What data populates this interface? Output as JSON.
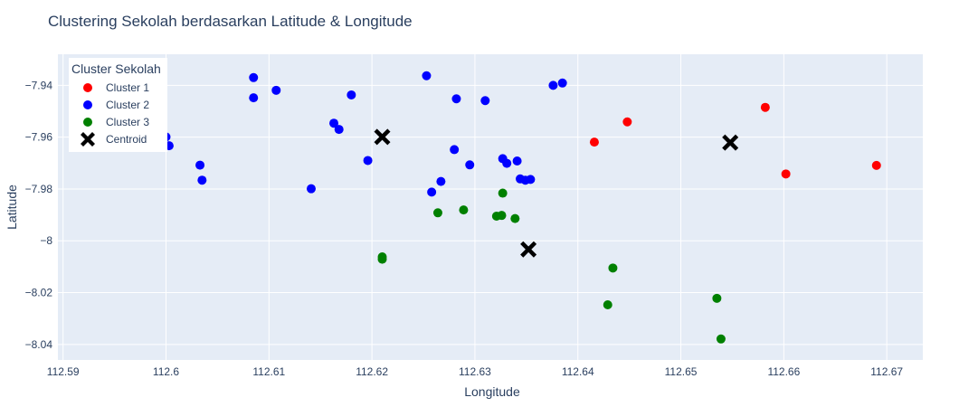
{
  "chart_data": {
    "type": "scatter",
    "title": "Clustering Sekolah berdasarkan Latitude & Longitude",
    "xlabel": "Longitude",
    "ylabel": "Latitude",
    "xlim": [
      112.5895,
      112.6735
    ],
    "ylim": [
      -8.046,
      -7.928
    ],
    "x_ticks": [
      112.59,
      112.6,
      112.61,
      112.62,
      112.63,
      112.64,
      112.65,
      112.66,
      112.67
    ],
    "x_tick_labels": [
      "112.59",
      "112.6",
      "112.61",
      "112.62",
      "112.63",
      "112.64",
      "112.65",
      "112.66",
      "112.67"
    ],
    "y_ticks": [
      -7.94,
      -7.96,
      -7.98,
      -8.0,
      -8.02,
      -8.04
    ],
    "y_tick_labels": [
      "−7.94",
      "−7.96",
      "−7.98",
      "−8",
      "−8.02",
      "−8.04"
    ],
    "grid": true,
    "legend": {
      "title": "Cluster Sekolah",
      "position": "top-left"
    },
    "series": [
      {
        "name": "Cluster 1",
        "color": "#ff0000",
        "marker": "circle",
        "points": [
          [
            112.6416,
            -7.9619
          ],
          [
            112.6448,
            -7.9541
          ],
          [
            112.6582,
            -7.9485
          ],
          [
            112.6602,
            -7.9742
          ],
          [
            112.669,
            -7.9709
          ]
        ]
      },
      {
        "name": "Cluster 2",
        "color": "#0000ff",
        "marker": "circle",
        "points": [
          [
            112.6,
            -7.9599
          ],
          [
            112.6003,
            -7.9633
          ],
          [
            112.6033,
            -7.9708
          ],
          [
            112.6035,
            -7.9766
          ],
          [
            112.6085,
            -7.937
          ],
          [
            112.6085,
            -7.9448
          ],
          [
            112.6107,
            -7.9419
          ],
          [
            112.6141,
            -7.9799
          ],
          [
            112.6163,
            -7.9546
          ],
          [
            112.6168,
            -7.957
          ],
          [
            112.618,
            -7.9437
          ],
          [
            112.6196,
            -7.969
          ],
          [
            112.6253,
            -7.9363
          ],
          [
            112.6258,
            -7.9812
          ],
          [
            112.6267,
            -7.9771
          ],
          [
            112.628,
            -7.9648
          ],
          [
            112.6282,
            -7.9452
          ],
          [
            112.6295,
            -7.9707
          ],
          [
            112.631,
            -7.9459
          ],
          [
            112.6327,
            -7.9683
          ],
          [
            112.6331,
            -7.9701
          ],
          [
            112.6341,
            -7.9692
          ],
          [
            112.6344,
            -7.9761
          ],
          [
            112.6349,
            -7.9766
          ],
          [
            112.6354,
            -7.9763
          ],
          [
            112.6376,
            -7.94
          ],
          [
            112.6385,
            -7.9391
          ]
        ]
      },
      {
        "name": "Cluster 3",
        "color": "#008000",
        "marker": "circle",
        "points": [
          [
            112.621,
            -8.0062
          ],
          [
            112.621,
            -8.0071
          ],
          [
            112.6264,
            -7.9892
          ],
          [
            112.6289,
            -7.9881
          ],
          [
            112.6321,
            -7.9905
          ],
          [
            112.6326,
            -7.9902
          ],
          [
            112.6327,
            -7.9816
          ],
          [
            112.6339,
            -7.9914
          ],
          [
            112.6429,
            -8.0247
          ],
          [
            112.6434,
            -8.0105
          ],
          [
            112.6535,
            -8.0222
          ],
          [
            112.6539,
            -8.0379
          ]
        ]
      },
      {
        "name": "Centroid",
        "color": "#000000",
        "marker": "x",
        "points": [
          [
            112.621,
            -7.9599
          ],
          [
            112.6548,
            -7.9621
          ],
          [
            112.6352,
            -8.0033
          ]
        ]
      }
    ]
  }
}
